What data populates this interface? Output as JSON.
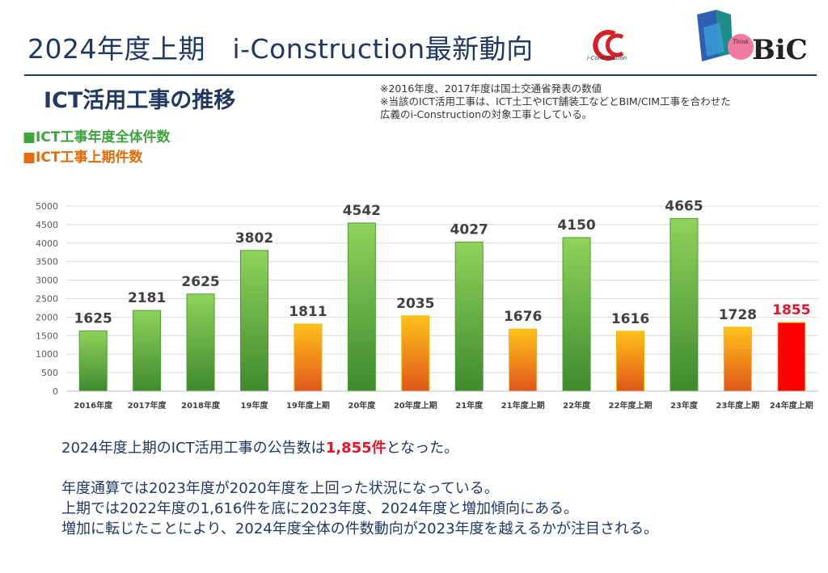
{
  "header": {
    "title": "2024年度上期　i-Construction最新動向",
    "ic_logo_caption": "i-Construction",
    "bic_logo_text": "BiC"
  },
  "subtitle": "ICT活用工事の推移",
  "notes": [
    "※2016年度、2017年度は国土交通省発表の数値",
    "※当該のICT活用工事は、ICT土工やICT舗装工などとBIM/CIM工事を合わせた",
    "広義のi-Constructionの対象工事としている。"
  ],
  "legend": {
    "annual": "■ICT工事年度全体件数",
    "first_half": "■ICT工事上期件数"
  },
  "chart_data": {
    "type": "bar",
    "categories": [
      "2016年度",
      "2017年度",
      "2018年度",
      "19年度",
      "19年度上期",
      "20年度",
      "20年度上期",
      "21年度",
      "21年度上期",
      "22年度",
      "22年度上期",
      "23年度",
      "23年度上期",
      "24年度上期"
    ],
    "values": [
      1625,
      2181,
      2625,
      3802,
      1811,
      4542,
      2035,
      4027,
      1676,
      4150,
      1616,
      4665,
      1728,
      1855
    ],
    "value_labels": [
      "1625",
      "2181",
      "2625",
      "3802",
      "1811",
      "4542",
      "2035",
      "4027",
      "1676",
      "4150",
      "1616",
      "4665",
      "1728",
      "1855"
    ],
    "series_kind": [
      "annual",
      "annual",
      "annual",
      "annual",
      "first_half",
      "annual",
      "first_half",
      "annual",
      "first_half",
      "annual",
      "first_half",
      "annual",
      "first_half",
      "highlight"
    ],
    "yticks": [
      0,
      500,
      1000,
      1500,
      2000,
      2500,
      3000,
      3500,
      4000,
      4500,
      5000
    ],
    "ylim": [
      0,
      5000
    ],
    "grid": true,
    "colors": {
      "annual": "#6fbf45",
      "first_half": "#f5a623",
      "highlight": "#ff0000",
      "highlight_label": "#e8142c"
    }
  },
  "summary": {
    "line1_a": "2024年度上期のICT活用工事の公告数は",
    "line1_hl": "1,855件",
    "line1_b": "となった。",
    "line2": "年度通算では2023年度が2020年度を上回った状況になっている。",
    "line3": "上期では2022年度の1,616件を底に2023年度、2024年度と増加傾向にある。",
    "line4": "増加に転じたことにより、2024年度全体の件数動向が2023年度を越えるかが注目される。"
  }
}
